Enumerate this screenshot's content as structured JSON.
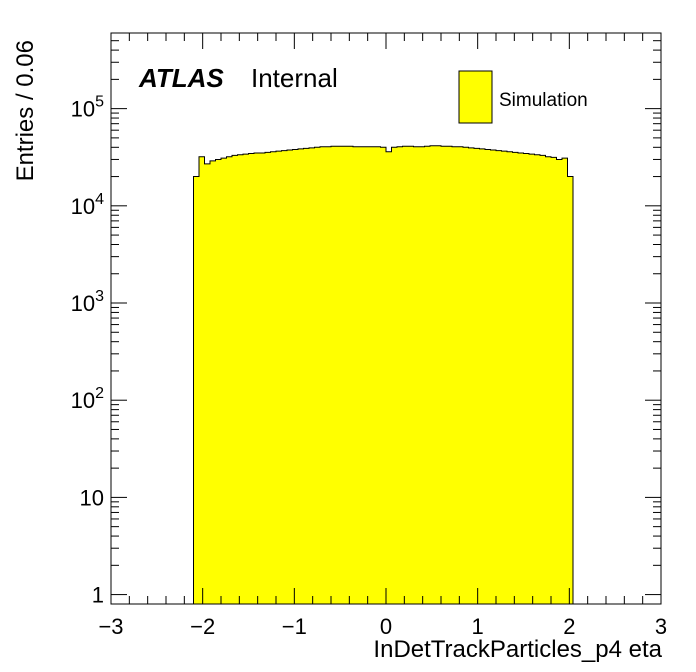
{
  "chart_data": {
    "type": "histogram",
    "title": "",
    "xlabel": "InDetTrackParticles_p4 eta",
    "ylabel": "Entries / 0.06",
    "xlim": [
      -3,
      3
    ],
    "ylim": [
      0.8,
      600000
    ],
    "yscale": "log",
    "bin_width": 0.06,
    "x_ticks": [
      {
        "value": -3,
        "label": "−3"
      },
      {
        "value": -2,
        "label": "−2"
      },
      {
        "value": -1,
        "label": "−1"
      },
      {
        "value": 0,
        "label": "0"
      },
      {
        "value": 1,
        "label": "1"
      },
      {
        "value": 2,
        "label": "2"
      },
      {
        "value": 3,
        "label": "3"
      }
    ],
    "y_ticks": [
      {
        "value": 1,
        "base": "1",
        "exp": ""
      },
      {
        "value": 10,
        "base": "10",
        "exp": ""
      },
      {
        "value": 100,
        "base": "10",
        "exp": "2"
      },
      {
        "value": 1000,
        "base": "10",
        "exp": "3"
      },
      {
        "value": 10000,
        "base": "10",
        "exp": "4"
      },
      {
        "value": 100000,
        "base": "10",
        "exp": "5"
      }
    ],
    "series": [
      {
        "name": "Simulation",
        "color": "#ffff00",
        "bin_edges_start": -2.1,
        "values": [
          20000,
          32000,
          27000,
          29000,
          30000,
          31000,
          32000,
          33000,
          33500,
          34000,
          34500,
          35000,
          35000,
          35500,
          36000,
          36500,
          37000,
          37500,
          38000,
          38500,
          39000,
          39500,
          40000,
          40500,
          40500,
          41000,
          41000,
          41000,
          41000,
          40500,
          40500,
          40500,
          40500,
          40500,
          40000,
          36000,
          40000,
          40500,
          41000,
          41000,
          40500,
          40500,
          41000,
          41500,
          41500,
          41000,
          41000,
          40500,
          40500,
          40000,
          39500,
          39000,
          38500,
          38000,
          37500,
          37000,
          36500,
          36000,
          35500,
          35000,
          34500,
          34000,
          33500,
          33000,
          32000,
          31500,
          30000,
          31000,
          20000
        ]
      }
    ],
    "annotations": {
      "atlas_label": "ATLAS",
      "atlas_status": "Internal"
    },
    "legend": {
      "placement": "top-right",
      "entries": [
        {
          "label": "Simulation",
          "color": "#ffff00"
        }
      ]
    },
    "grid": false
  }
}
